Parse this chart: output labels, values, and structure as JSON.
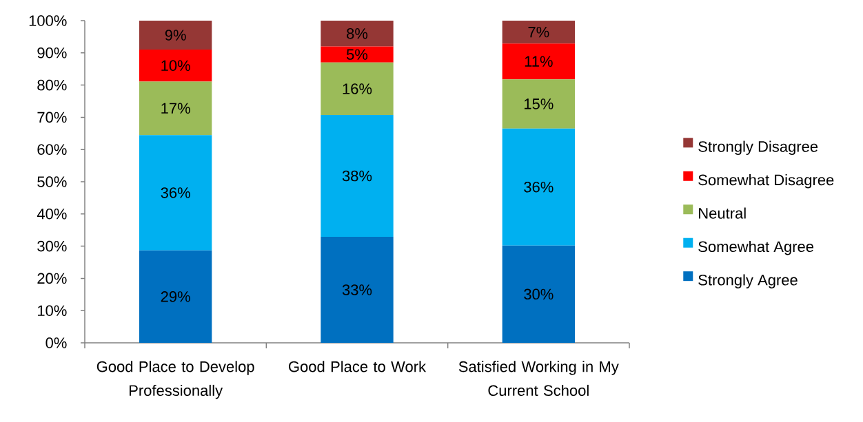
{
  "chart_data": {
    "type": "bar",
    "stacked": true,
    "categories": [
      "Good Place to Develop Professionally",
      "Good Place to Work",
      "Satisfied Working in My Current School"
    ],
    "series": [
      {
        "name": "Strongly Agree",
        "color": "#0070c0",
        "values": [
          28.7,
          32.9,
          30.2
        ],
        "value_labels": [
          "29%",
          "33%",
          "30%"
        ]
      },
      {
        "name": "Somewhat Agree",
        "color": "#00b0f0",
        "values": [
          35.8,
          37.8,
          36.3
        ],
        "value_labels": [
          "36%",
          "38%",
          "36%"
        ]
      },
      {
        "name": "Neutral",
        "color": "#9bbb59",
        "values": [
          16.6,
          16.3,
          15.3
        ],
        "value_labels": [
          "17%",
          "16%",
          "15%"
        ]
      },
      {
        "name": "Somewhat Disagree",
        "color": "#ff0000",
        "values": [
          9.9,
          5.0,
          11.1
        ],
        "value_labels": [
          "10%",
          "5%",
          "11%"
        ]
      },
      {
        "name": "Strongly Disagree",
        "color": "#953735",
        "values": [
          9.0,
          8.0,
          7.1
        ],
        "value_labels": [
          "9%",
          "8%",
          "7%"
        ]
      }
    ],
    "ylim": [
      0,
      100
    ],
    "yticks": [
      {
        "value": 0,
        "label": "0%"
      },
      {
        "value": 10,
        "label": "10%"
      },
      {
        "value": 20,
        "label": "20%"
      },
      {
        "value": 30,
        "label": "30%"
      },
      {
        "value": 40,
        "label": "40%"
      },
      {
        "value": 50,
        "label": "50%"
      },
      {
        "value": 60,
        "label": "60%"
      },
      {
        "value": 70,
        "label": "70%"
      },
      {
        "value": 80,
        "label": "80%"
      },
      {
        "value": 90,
        "label": "90%"
      },
      {
        "value": 100,
        "label": "100%"
      }
    ],
    "legend": "right"
  }
}
